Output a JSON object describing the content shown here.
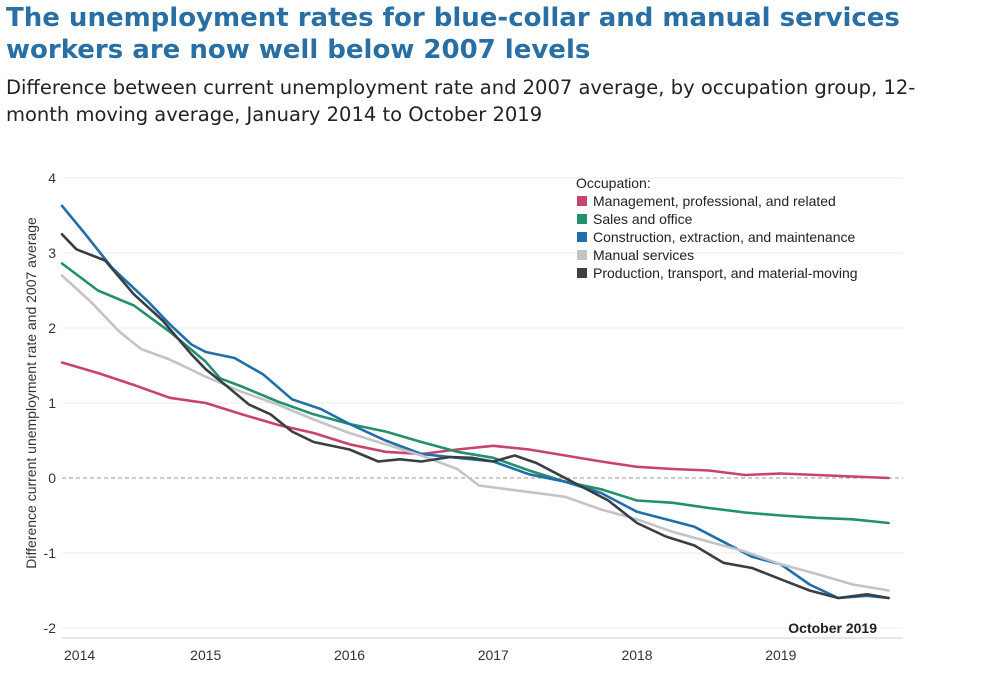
{
  "title": "The unemployment rates for blue-collar and manual services workers are now well below 2007 levels",
  "subtitle": "Difference between current unemployment rate and 2007 average, by occupation group, 12-month moving average, January 2014 to October 2019",
  "chart_data": {
    "type": "line",
    "ylabel": "Difference current unemployment rate and 2007 average",
    "xlabel": "",
    "xlim": [
      2014.0,
      2019.85
    ],
    "ylim": [
      -2,
      4
    ],
    "y_ticks": [
      4,
      3,
      2,
      1,
      0,
      -1,
      -2
    ],
    "x_ticks": [
      {
        "value": 2014,
        "label": "2014"
      },
      {
        "value": 2015,
        "label": "2015"
      },
      {
        "value": 2016,
        "label": "2016"
      },
      {
        "value": 2017,
        "label": "2017"
      },
      {
        "value": 2018,
        "label": "2018"
      },
      {
        "value": 2019,
        "label": "2019"
      }
    ],
    "grid": "horizontal",
    "zero_line": "dashed",
    "legend": {
      "title": "Occupation:",
      "placement": "top-right"
    },
    "annotation": "October 2019",
    "series": [
      {
        "name": "Management, professional, and related",
        "color": "#c8446a",
        "points": [
          [
            2014.0,
            1.54
          ],
          [
            2014.25,
            1.4
          ],
          [
            2014.5,
            1.24
          ],
          [
            2014.75,
            1.07
          ],
          [
            2015.0,
            1.0
          ],
          [
            2015.25,
            0.85
          ],
          [
            2015.5,
            0.71
          ],
          [
            2015.75,
            0.6
          ],
          [
            2016.0,
            0.45
          ],
          [
            2016.25,
            0.35
          ],
          [
            2016.5,
            0.32
          ],
          [
            2016.75,
            0.38
          ],
          [
            2017.0,
            0.43
          ],
          [
            2017.25,
            0.38
          ],
          [
            2017.5,
            0.3
          ],
          [
            2017.75,
            0.22
          ],
          [
            2018.0,
            0.15
          ],
          [
            2018.25,
            0.12
          ],
          [
            2018.5,
            0.1
          ],
          [
            2018.75,
            0.04
          ],
          [
            2019.0,
            0.06
          ],
          [
            2019.25,
            0.04
          ],
          [
            2019.5,
            0.02
          ],
          [
            2019.75,
            0.0
          ]
        ]
      },
      {
        "name": "Sales and office",
        "color": "#22906c",
        "points": [
          [
            2014.0,
            2.86
          ],
          [
            2014.25,
            2.5
          ],
          [
            2014.5,
            2.3
          ],
          [
            2014.75,
            1.95
          ],
          [
            2015.0,
            1.55
          ],
          [
            2015.1,
            1.33
          ],
          [
            2015.25,
            1.22
          ],
          [
            2015.5,
            1.02
          ],
          [
            2015.75,
            0.85
          ],
          [
            2016.0,
            0.72
          ],
          [
            2016.25,
            0.62
          ],
          [
            2016.5,
            0.48
          ],
          [
            2016.75,
            0.35
          ],
          [
            2017.0,
            0.27
          ],
          [
            2017.25,
            0.1
          ],
          [
            2017.5,
            -0.05
          ],
          [
            2017.75,
            -0.15
          ],
          [
            2018.0,
            -0.3
          ],
          [
            2018.25,
            -0.33
          ],
          [
            2018.5,
            -0.4
          ],
          [
            2018.75,
            -0.46
          ],
          [
            2019.0,
            -0.5
          ],
          [
            2019.25,
            -0.53
          ],
          [
            2019.5,
            -0.55
          ],
          [
            2019.75,
            -0.6
          ]
        ]
      },
      {
        "name": "Construction, extraction, and maintenance",
        "color": "#1f6fa8",
        "points": [
          [
            2014.0,
            3.63
          ],
          [
            2014.15,
            3.28
          ],
          [
            2014.35,
            2.8
          ],
          [
            2014.6,
            2.35
          ],
          [
            2014.75,
            2.05
          ],
          [
            2014.9,
            1.78
          ],
          [
            2015.0,
            1.68
          ],
          [
            2015.2,
            1.6
          ],
          [
            2015.4,
            1.38
          ],
          [
            2015.6,
            1.05
          ],
          [
            2015.8,
            0.92
          ],
          [
            2016.0,
            0.72
          ],
          [
            2016.25,
            0.5
          ],
          [
            2016.5,
            0.32
          ],
          [
            2016.75,
            0.27
          ],
          [
            2017.0,
            0.22
          ],
          [
            2017.25,
            0.05
          ],
          [
            2017.5,
            -0.05
          ],
          [
            2017.75,
            -0.2
          ],
          [
            2018.0,
            -0.45
          ],
          [
            2018.2,
            -0.55
          ],
          [
            2018.4,
            -0.65
          ],
          [
            2018.6,
            -0.85
          ],
          [
            2018.8,
            -1.05
          ],
          [
            2019.0,
            -1.15
          ],
          [
            2019.2,
            -1.42
          ],
          [
            2019.4,
            -1.6
          ],
          [
            2019.6,
            -1.57
          ],
          [
            2019.75,
            -1.6
          ]
        ]
      },
      {
        "name": "Manual services",
        "color": "#c4c4c8",
        "points": [
          [
            2014.0,
            2.7
          ],
          [
            2014.2,
            2.35
          ],
          [
            2014.4,
            1.95
          ],
          [
            2014.55,
            1.72
          ],
          [
            2014.75,
            1.58
          ],
          [
            2015.0,
            1.35
          ],
          [
            2015.25,
            1.15
          ],
          [
            2015.5,
            0.98
          ],
          [
            2015.75,
            0.78
          ],
          [
            2016.0,
            0.6
          ],
          [
            2016.25,
            0.45
          ],
          [
            2016.5,
            0.3
          ],
          [
            2016.75,
            0.12
          ],
          [
            2016.9,
            -0.1
          ],
          [
            2017.1,
            -0.15
          ],
          [
            2017.3,
            -0.2
          ],
          [
            2017.5,
            -0.25
          ],
          [
            2017.75,
            -0.42
          ],
          [
            2018.0,
            -0.55
          ],
          [
            2018.25,
            -0.72
          ],
          [
            2018.5,
            -0.85
          ],
          [
            2018.75,
            -0.98
          ],
          [
            2019.0,
            -1.15
          ],
          [
            2019.25,
            -1.28
          ],
          [
            2019.5,
            -1.42
          ],
          [
            2019.75,
            -1.5
          ]
        ]
      },
      {
        "name": "Production, transport, and material-moving",
        "color": "#3a3e45",
        "points": [
          [
            2014.0,
            3.25
          ],
          [
            2014.1,
            3.05
          ],
          [
            2014.3,
            2.9
          ],
          [
            2014.5,
            2.45
          ],
          [
            2014.7,
            2.1
          ],
          [
            2014.9,
            1.65
          ],
          [
            2015.0,
            1.45
          ],
          [
            2015.15,
            1.22
          ],
          [
            2015.3,
            0.98
          ],
          [
            2015.45,
            0.85
          ],
          [
            2015.6,
            0.62
          ],
          [
            2015.75,
            0.48
          ],
          [
            2016.0,
            0.38
          ],
          [
            2016.2,
            0.22
          ],
          [
            2016.35,
            0.25
          ],
          [
            2016.5,
            0.22
          ],
          [
            2016.7,
            0.28
          ],
          [
            2016.85,
            0.27
          ],
          [
            2017.0,
            0.22
          ],
          [
            2017.15,
            0.3
          ],
          [
            2017.3,
            0.2
          ],
          [
            2017.45,
            0.05
          ],
          [
            2017.6,
            -0.1
          ],
          [
            2017.8,
            -0.3
          ],
          [
            2018.0,
            -0.6
          ],
          [
            2018.2,
            -0.78
          ],
          [
            2018.4,
            -0.9
          ],
          [
            2018.6,
            -1.13
          ],
          [
            2018.8,
            -1.2
          ],
          [
            2019.0,
            -1.35
          ],
          [
            2019.2,
            -1.5
          ],
          [
            2019.4,
            -1.6
          ],
          [
            2019.6,
            -1.55
          ],
          [
            2019.75,
            -1.6
          ]
        ]
      }
    ]
  }
}
